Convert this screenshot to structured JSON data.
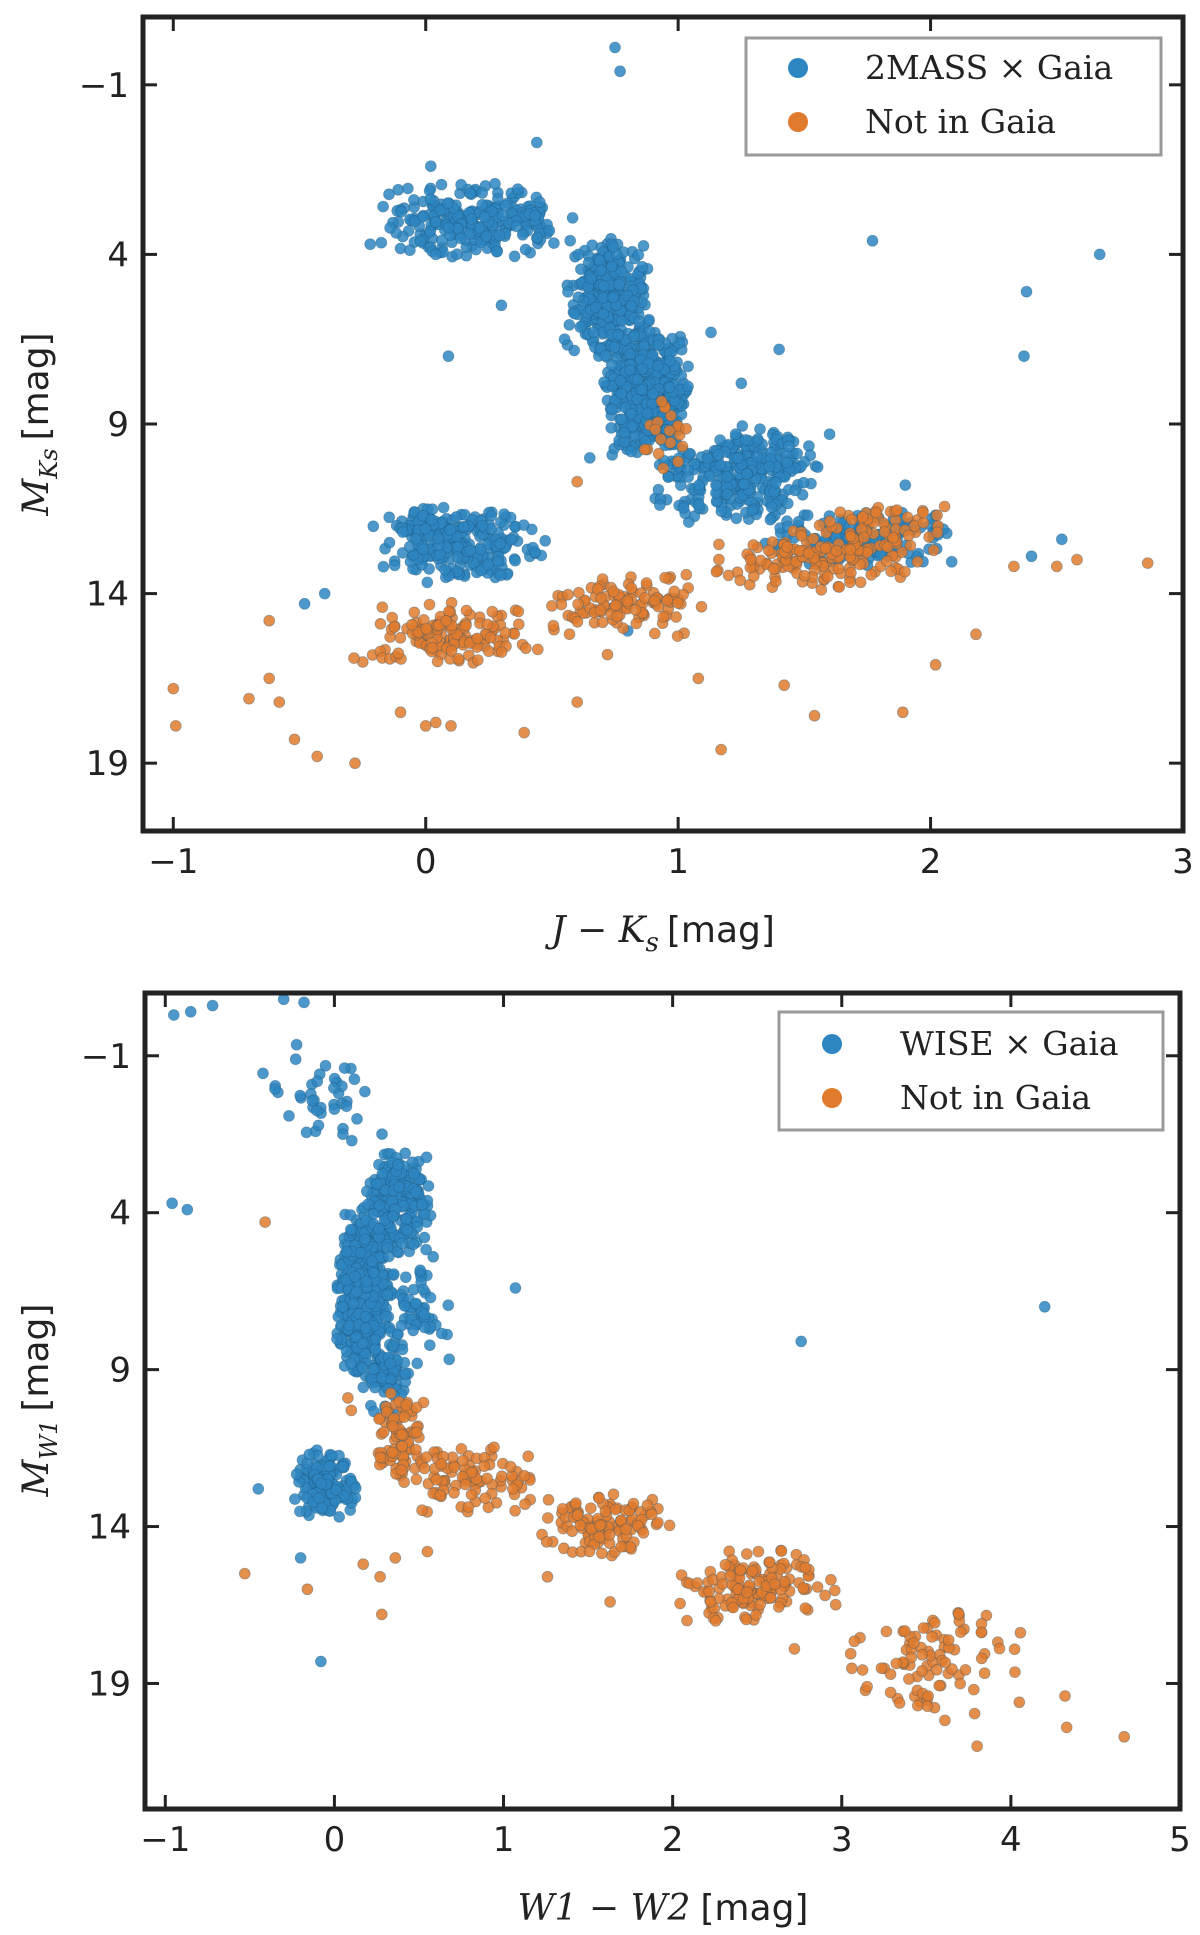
{
  "colors": {
    "gaia": "#2e86c1",
    "not_in_gaia": "#e07b2e",
    "frame": "#222222",
    "legend_frame": "#9a9a9a"
  },
  "chart_data": [
    {
      "type": "scatter",
      "title": "",
      "xlabel": {
        "math": "J − K",
        "sub": "s",
        "unit": "[mag]"
      },
      "ylabel": {
        "math": "M",
        "sub": "Ks",
        "unit": "[mag]"
      },
      "xlim": [
        -1.12,
        3.0
      ],
      "ylim": [
        21.0,
        -3.0
      ],
      "xticks": [
        -1,
        0,
        1,
        2,
        3
      ],
      "yticks": [
        -1,
        4,
        9,
        14,
        19
      ],
      "legend": {
        "position": "top-right",
        "entries": [
          "2MASS × Gaia",
          "Not in Gaia"
        ]
      },
      "grid": false,
      "series": [
        {
          "name": "2MASS × Gaia",
          "color": "#2e86c1",
          "clusters": [
            {
              "x": [
                -0.2,
                0.6
              ],
              "y": [
                1.8,
                4.2
              ],
              "n": 260
            },
            {
              "x": [
                0.55,
                0.9
              ],
              "y": [
                3.5,
                7.2
              ],
              "n": 320
            },
            {
              "x": [
                0.7,
                1.05
              ],
              "y": [
                6.0,
                10.0
              ],
              "n": 520
            },
            {
              "x": [
                0.9,
                1.6
              ],
              "y": [
                9.0,
                12.0
              ],
              "n": 300
            },
            {
              "x": [
                1.3,
                2.1
              ],
              "y": [
                11.5,
                13.3
              ],
              "n": 160
            },
            {
              "x": [
                -0.22,
                0.5
              ],
              "y": [
                11.3,
                13.8
              ],
              "n": 260
            }
          ],
          "outliers": {
            "x": [
              0.75,
              0.77,
              1.77,
              2.67,
              2.38,
              2.37,
              0.02,
              0.04,
              -0.22,
              0.44,
              0.09,
              0.3,
              0.55,
              0.65,
              1.13,
              1.25,
              1.4,
              1.6,
              1.9,
              2.52,
              2.4,
              -0.48,
              -0.4,
              1.15,
              2.05,
              0.8
            ],
            "y": [
              -2.1,
              -1.4,
              3.6,
              4.0,
              5.1,
              7.0,
              1.4,
              4.0,
              3.7,
              0.7,
              7.0,
              5.5,
              6.5,
              10.0,
              6.3,
              7.8,
              6.8,
              9.3,
              10.8,
              12.4,
              12.9,
              14.3,
              14.0,
              10.8,
              12.1,
              15.1
            ]
          }
        },
        {
          "name": "Not in Gaia",
          "color": "#e07b2e",
          "clusters": [
            {
              "x": [
                -0.3,
                0.45
              ],
              "y": [
                14.2,
                16.2
              ],
              "n": 140
            },
            {
              "x": [
                0.45,
                1.1
              ],
              "y": [
                13.3,
                15.3
              ],
              "n": 110
            },
            {
              "x": [
                1.1,
                2.0
              ],
              "y": [
                12.3,
                14.0
              ],
              "n": 110
            },
            {
              "x": [
                1.4,
                2.1
              ],
              "y": [
                11.2,
                13.2
              ],
              "n": 90
            },
            {
              "x": [
                0.85,
                1.05
              ],
              "y": [
                8.3,
                10.5
              ],
              "n": 20
            }
          ],
          "outliers": {
            "x": [
              -1.0,
              -0.99,
              -0.7,
              -0.62,
              -0.58,
              -0.52,
              -0.43,
              -0.28,
              -0.1,
              0.04,
              0.1,
              0.39,
              0.6,
              0.72,
              1.08,
              1.17,
              1.42,
              1.54,
              1.89,
              2.02,
              2.18,
              2.33,
              2.5,
              2.58,
              2.86,
              0.6,
              0.0,
              -0.62,
              0.25
            ],
            "y": [
              16.8,
              17.9,
              17.1,
              16.5,
              17.2,
              18.3,
              18.8,
              19.0,
              17.5,
              17.8,
              17.9,
              18.1,
              17.2,
              15.8,
              16.5,
              18.6,
              16.7,
              17.6,
              17.5,
              16.1,
              15.2,
              13.2,
              13.2,
              13.0,
              13.1,
              10.7,
              17.9,
              14.8,
              15.7
            ]
          }
        }
      ]
    },
    {
      "type": "scatter",
      "title": "",
      "xlabel": {
        "math": "W1 − W2",
        "sub": "",
        "unit": "[mag]"
      },
      "ylabel": {
        "math": "M",
        "sub": "W1",
        "unit": "[mag]"
      },
      "xlim": [
        -1.12,
        5.0
      ],
      "ylim": [
        23.0,
        -3.0
      ],
      "xticks": [
        -1,
        0,
        1,
        2,
        3,
        4,
        5
      ],
      "yticks": [
        -1,
        4,
        9,
        14,
        19
      ],
      "legend": {
        "position": "top-right",
        "entries": [
          "WISE × Gaia",
          "Not in Gaia"
        ]
      },
      "grid": false,
      "series": [
        {
          "name": "WISE × Gaia",
          "color": "#2e86c1",
          "clusters": [
            {
              "x": [
                0.0,
                0.35
              ],
              "y": [
                3.5,
                9.5
              ],
              "n": 480
            },
            {
              "x": [
                0.15,
                0.6
              ],
              "y": [
                2.0,
                5.5
              ],
              "n": 220
            },
            {
              "x": [
                0.15,
                0.45
              ],
              "y": [
                8.0,
                10.5
              ],
              "n": 80
            },
            {
              "x": [
                -0.25,
                0.15
              ],
              "y": [
                11.5,
                13.8
              ],
              "n": 160
            },
            {
              "x": [
                -0.45,
                0.3
              ],
              "y": [
                -1.5,
                2.0
              ],
              "n": 40
            },
            {
              "x": [
                0.3,
                0.7
              ],
              "y": [
                5.0,
                9.0
              ],
              "n": 60
            }
          ],
          "outliers": {
            "x": [
              -0.95,
              -0.85,
              -0.72,
              -0.35,
              -0.3,
              -0.18,
              -0.87,
              -0.96,
              1.07,
              2.76,
              4.2,
              -0.08,
              -0.2,
              -0.45,
              0.0,
              0.05
            ],
            "y": [
              -2.3,
              -2.4,
              -2.6,
              -3.1,
              -2.8,
              -2.7,
              3.9,
              3.7,
              6.4,
              8.1,
              7.0,
              18.3,
              15.0,
              12.8,
              0.7,
              1.5
            ]
          }
        },
        {
          "name": "Not in Gaia",
          "color": "#e07b2e",
          "clusters": [
            {
              "x": [
                0.22,
                0.55
              ],
              "y": [
                9.5,
                12.8
              ],
              "n": 80
            },
            {
              "x": [
                0.45,
                1.2
              ],
              "y": [
                11.3,
                13.6
              ],
              "n": 90
            },
            {
              "x": [
                1.2,
                2.0
              ],
              "y": [
                12.8,
                15.2
              ],
              "n": 110
            },
            {
              "x": [
                2.0,
                3.0
              ],
              "y": [
                14.5,
                17.3
              ],
              "n": 140
            },
            {
              "x": [
                3.0,
                4.1
              ],
              "y": [
                16.3,
                20.2
              ],
              "n": 90
            }
          ],
          "outliers": {
            "x": [
              -0.53,
              -0.16,
              0.17,
              0.27,
              0.36,
              0.28,
              0.76,
              1.26,
              1.63,
              2.72,
              3.8,
              4.05,
              4.32,
              4.33,
              4.67,
              -0.41,
              0.08,
              0.1,
              0.55,
              3.15
            ],
            "y": [
              15.5,
              16.0,
              15.2,
              15.6,
              15.0,
              16.8,
              11.9,
              15.6,
              16.4,
              17.9,
              21.0,
              19.6,
              19.4,
              20.4,
              20.7,
              4.3,
              9.9,
              10.3,
              14.8,
              19.1
            ]
          }
        }
      ]
    }
  ]
}
